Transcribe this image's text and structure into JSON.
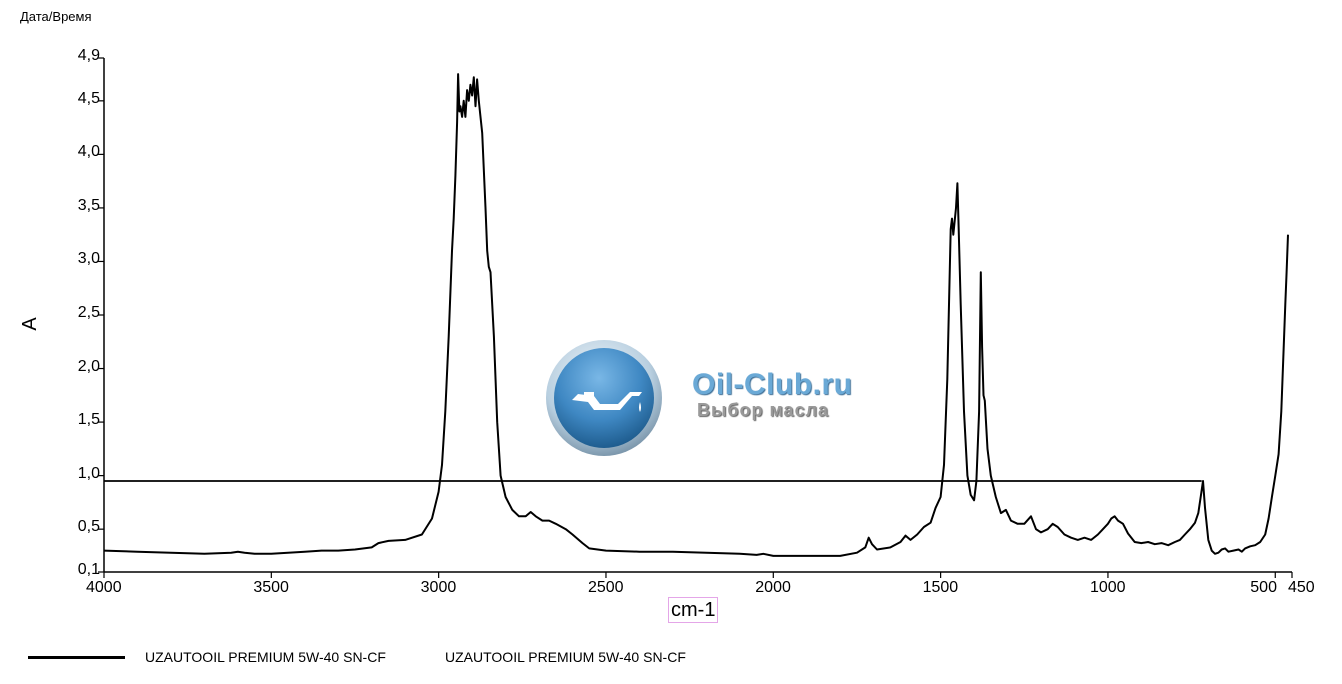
{
  "header": {
    "label": "Дата/Время"
  },
  "watermark": {
    "title": "Oil-Club.ru",
    "subtitle": "Выбор масла",
    "icon": "oil-can-icon",
    "colors": {
      "outer": "#a9c3d8",
      "inner": "#3f88c3",
      "title": "#6aa9d6"
    }
  },
  "legend": {
    "entry_1": "UZAUTOOIL PREMIUM 5W-40 SN-CF",
    "entry_2": "UZAUTOOIL PREMIUM 5W-40 SN-CF"
  },
  "chart_data": {
    "type": "line",
    "title": "",
    "xlabel": "cm-1",
    "ylabel": "A",
    "x_reversed": true,
    "xlim": [
      4000,
      450
    ],
    "ylim": [
      0.1,
      4.9
    ],
    "x_ticks": [
      "4000",
      "3500",
      "3000",
      "2500",
      "2000",
      "1500",
      "1000",
      "500",
      "450"
    ],
    "y_ticks": [
      "0,1",
      "0,5",
      "1,0",
      "1,5",
      "2,0",
      "2,5",
      "3,0",
      "3,5",
      "4,0",
      "4,5",
      "4,9"
    ],
    "grid": false,
    "legend_position": "bottom-left",
    "threshold_line": {
      "y": 0.95,
      "x_from": 4000,
      "x_to": 720
    },
    "series": [
      {
        "name": "UZAUTOOIL PREMIUM 5W-40 SN-CF",
        "color": "#000000",
        "points": [
          [
            4000,
            0.3
          ],
          [
            3900,
            0.29
          ],
          [
            3800,
            0.28
          ],
          [
            3700,
            0.27
          ],
          [
            3620,
            0.28
          ],
          [
            3600,
            0.29
          ],
          [
            3580,
            0.28
          ],
          [
            3550,
            0.27
          ],
          [
            3500,
            0.27
          ],
          [
            3450,
            0.28
          ],
          [
            3400,
            0.29
          ],
          [
            3350,
            0.3
          ],
          [
            3300,
            0.3
          ],
          [
            3250,
            0.31
          ],
          [
            3200,
            0.33
          ],
          [
            3180,
            0.37
          ],
          [
            3150,
            0.39
          ],
          [
            3100,
            0.4
          ],
          [
            3050,
            0.45
          ],
          [
            3020,
            0.6
          ],
          [
            3000,
            0.85
          ],
          [
            2990,
            1.1
          ],
          [
            2980,
            1.6
          ],
          [
            2970,
            2.3
          ],
          [
            2960,
            3.1
          ],
          [
            2955,
            3.4
          ],
          [
            2950,
            3.8
          ],
          [
            2945,
            4.3
          ],
          [
            2942,
            4.75
          ],
          [
            2938,
            4.4
          ],
          [
            2935,
            4.45
          ],
          [
            2930,
            4.35
          ],
          [
            2925,
            4.5
          ],
          [
            2920,
            4.35
          ],
          [
            2915,
            4.6
          ],
          [
            2910,
            4.5
          ],
          [
            2905,
            4.65
          ],
          [
            2900,
            4.55
          ],
          [
            2895,
            4.72
          ],
          [
            2890,
            4.45
          ],
          [
            2885,
            4.7
          ],
          [
            2880,
            4.5
          ],
          [
            2870,
            4.2
          ],
          [
            2860,
            3.5
          ],
          [
            2855,
            3.1
          ],
          [
            2850,
            2.95
          ],
          [
            2845,
            2.9
          ],
          [
            2835,
            2.3
          ],
          [
            2825,
            1.5
          ],
          [
            2815,
            1.0
          ],
          [
            2800,
            0.8
          ],
          [
            2780,
            0.68
          ],
          [
            2760,
            0.62
          ],
          [
            2740,
            0.62
          ],
          [
            2725,
            0.66
          ],
          [
            2710,
            0.62
          ],
          [
            2690,
            0.58
          ],
          [
            2670,
            0.58
          ],
          [
            2650,
            0.55
          ],
          [
            2620,
            0.5
          ],
          [
            2600,
            0.45
          ],
          [
            2570,
            0.37
          ],
          [
            2550,
            0.32
          ],
          [
            2500,
            0.3
          ],
          [
            2400,
            0.29
          ],
          [
            2300,
            0.29
          ],
          [
            2200,
            0.28
          ],
          [
            2100,
            0.27
          ],
          [
            2050,
            0.26
          ],
          [
            2030,
            0.27
          ],
          [
            2000,
            0.25
          ],
          [
            1900,
            0.25
          ],
          [
            1800,
            0.25
          ],
          [
            1750,
            0.28
          ],
          [
            1725,
            0.33
          ],
          [
            1715,
            0.42
          ],
          [
            1705,
            0.36
          ],
          [
            1690,
            0.31
          ],
          [
            1650,
            0.33
          ],
          [
            1620,
            0.38
          ],
          [
            1605,
            0.44
          ],
          [
            1590,
            0.4
          ],
          [
            1570,
            0.45
          ],
          [
            1550,
            0.52
          ],
          [
            1530,
            0.56
          ],
          [
            1515,
            0.7
          ],
          [
            1500,
            0.8
          ],
          [
            1490,
            1.1
          ],
          [
            1480,
            1.9
          ],
          [
            1470,
            3.3
          ],
          [
            1466,
            3.4
          ],
          [
            1462,
            3.25
          ],
          [
            1458,
            3.38
          ],
          [
            1454,
            3.5
          ],
          [
            1450,
            3.73
          ],
          [
            1446,
            3.3
          ],
          [
            1440,
            2.6
          ],
          [
            1430,
            1.6
          ],
          [
            1420,
            1.0
          ],
          [
            1410,
            0.82
          ],
          [
            1400,
            0.77
          ],
          [
            1393,
            0.95
          ],
          [
            1385,
            1.6
          ],
          [
            1380,
            2.9
          ],
          [
            1376,
            2.2
          ],
          [
            1372,
            1.75
          ],
          [
            1368,
            1.7
          ],
          [
            1360,
            1.25
          ],
          [
            1350,
            1.0
          ],
          [
            1335,
            0.8
          ],
          [
            1320,
            0.65
          ],
          [
            1305,
            0.68
          ],
          [
            1290,
            0.58
          ],
          [
            1270,
            0.55
          ],
          [
            1250,
            0.55
          ],
          [
            1230,
            0.62
          ],
          [
            1215,
            0.5
          ],
          [
            1200,
            0.47
          ],
          [
            1180,
            0.5
          ],
          [
            1165,
            0.55
          ],
          [
            1150,
            0.52
          ],
          [
            1130,
            0.45
          ],
          [
            1110,
            0.42
          ],
          [
            1090,
            0.4
          ],
          [
            1070,
            0.42
          ],
          [
            1050,
            0.4
          ],
          [
            1030,
            0.45
          ],
          [
            1015,
            0.5
          ],
          [
            1000,
            0.55
          ],
          [
            990,
            0.6
          ],
          [
            980,
            0.62
          ],
          [
            970,
            0.58
          ],
          [
            955,
            0.55
          ],
          [
            940,
            0.46
          ],
          [
            920,
            0.38
          ],
          [
            900,
            0.37
          ],
          [
            880,
            0.38
          ],
          [
            860,
            0.36
          ],
          [
            840,
            0.37
          ],
          [
            820,
            0.35
          ],
          [
            800,
            0.38
          ],
          [
            785,
            0.4
          ],
          [
            770,
            0.45
          ],
          [
            755,
            0.5
          ],
          [
            740,
            0.56
          ],
          [
            730,
            0.65
          ],
          [
            722,
            0.82
          ],
          [
            716,
            0.95
          ],
          [
            710,
            0.7
          ],
          [
            700,
            0.4
          ],
          [
            690,
            0.3
          ],
          [
            680,
            0.27
          ],
          [
            670,
            0.28
          ],
          [
            660,
            0.31
          ],
          [
            650,
            0.32
          ],
          [
            640,
            0.29
          ],
          [
            625,
            0.3
          ],
          [
            610,
            0.31
          ],
          [
            600,
            0.29
          ],
          [
            590,
            0.32
          ],
          [
            575,
            0.34
          ],
          [
            560,
            0.35
          ],
          [
            545,
            0.38
          ],
          [
            530,
            0.45
          ],
          [
            520,
            0.6
          ],
          [
            510,
            0.8
          ],
          [
            500,
            1.0
          ],
          [
            490,
            1.2
          ],
          [
            482,
            1.6
          ],
          [
            476,
            2.1
          ],
          [
            470,
            2.6
          ],
          [
            466,
            2.9
          ],
          [
            462,
            3.25
          ]
        ]
      }
    ]
  }
}
